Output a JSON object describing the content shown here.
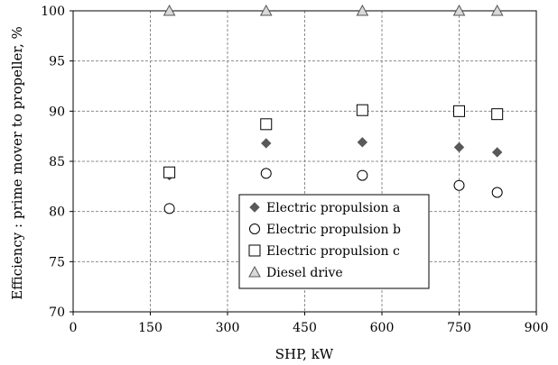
{
  "chart_data": {
    "type": "scatter",
    "xlabel": "SHP, kW",
    "ylabel": "Efficiency : prime mover to propeller, %",
    "xlim": [
      0,
      900
    ],
    "ylim": [
      70,
      100
    ],
    "xticks": [
      0,
      150,
      300,
      450,
      600,
      750,
      900
    ],
    "yticks": [
      70,
      75,
      80,
      85,
      90,
      95,
      100
    ],
    "grid": true,
    "grid_style": "dashed",
    "legend_position": "bottom-center",
    "series": [
      {
        "name": "Electric propulsion a",
        "marker": "filled-diamond",
        "color": "#595959",
        "x": [
          187,
          375,
          562,
          750,
          824
        ],
        "y": [
          83.6,
          86.8,
          86.9,
          86.4,
          85.9
        ]
      },
      {
        "name": "Electric propulsion b",
        "marker": "open-circle",
        "color": "#000000",
        "x": [
          187,
          375,
          562,
          750,
          824
        ],
        "y": [
          80.3,
          83.8,
          83.6,
          82.6,
          81.9
        ]
      },
      {
        "name": "Electric propulsion c",
        "marker": "open-square",
        "color": "#000000",
        "x": [
          187,
          375,
          562,
          750,
          824
        ],
        "y": [
          83.9,
          88.7,
          90.1,
          90.0,
          89.7
        ]
      },
      {
        "name": "Diesel drive",
        "marker": "open-triangle",
        "color": "#555555",
        "x": [
          187,
          375,
          562,
          750,
          824
        ],
        "y": [
          100,
          100,
          100,
          100,
          100
        ]
      }
    ]
  }
}
